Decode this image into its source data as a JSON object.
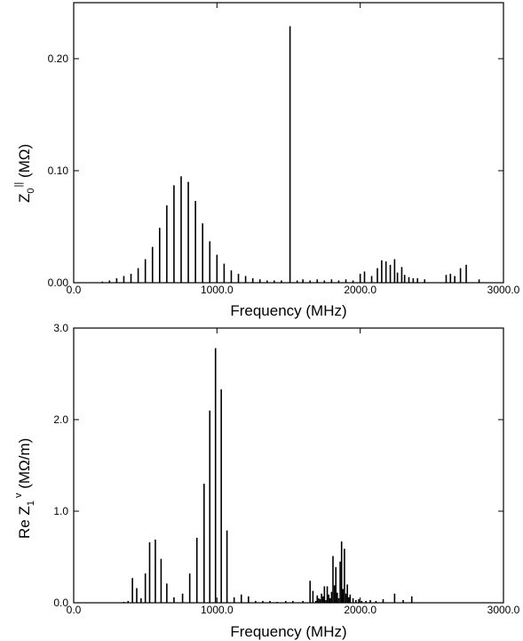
{
  "chart_data": [
    {
      "type": "bar",
      "xlabel": "Frequency (MHz)",
      "ylabel": {
        "base": "Z",
        "sub": "0",
        "sup": "||",
        "unit": " (MΩ)"
      },
      "xlim": [
        0,
        3000
      ],
      "ylim": [
        0,
        0.25
      ],
      "xticks": [
        0,
        1000,
        2000,
        3000
      ],
      "xtick_labels": [
        "0.0",
        "1000.0",
        "2000.0",
        "3000.0"
      ],
      "yticks": [
        0,
        0.1,
        0.2
      ],
      "ytick_labels": [
        "0.00",
        "0.10",
        "0.20"
      ],
      "grid": false,
      "x": [
        200,
        250,
        300,
        350,
        400,
        450,
        500,
        550,
        600,
        650,
        700,
        750,
        800,
        850,
        900,
        950,
        1000,
        1050,
        1100,
        1150,
        1200,
        1250,
        1300,
        1350,
        1400,
        1450,
        1510,
        1560,
        1600,
        1650,
        1700,
        1750,
        1800,
        1850,
        1900,
        1950,
        2000,
        2030,
        2080,
        2120,
        2150,
        2180,
        2210,
        2240,
        2260,
        2290,
        2310,
        2340,
        2370,
        2400,
        2450,
        2600,
        2630,
        2660,
        2700,
        2740,
        2830
      ],
      "values": [
        0.001,
        0.002,
        0.004,
        0.006,
        0.008,
        0.013,
        0.021,
        0.032,
        0.049,
        0.069,
        0.087,
        0.095,
        0.09,
        0.073,
        0.053,
        0.037,
        0.025,
        0.017,
        0.011,
        0.008,
        0.006,
        0.004,
        0.003,
        0.002,
        0.002,
        0.002,
        0.229,
        0.002,
        0.003,
        0.002,
        0.003,
        0.002,
        0.003,
        0.002,
        0.003,
        0.002,
        0.008,
        0.01,
        0.006,
        0.013,
        0.02,
        0.019,
        0.016,
        0.021,
        0.009,
        0.014,
        0.007,
        0.005,
        0.004,
        0.004,
        0.003,
        0.007,
        0.008,
        0.006,
        0.013,
        0.016,
        0.003
      ]
    },
    {
      "type": "bar",
      "xlabel": "Frequency (MHz)",
      "ylabel": {
        "base": "Re Z",
        "sub": "1",
        "sup": "v",
        "unit": " (MΩ/m)"
      },
      "xlim": [
        0,
        3000
      ],
      "ylim": [
        0,
        3.0
      ],
      "xticks": [
        0,
        1000,
        2000,
        3000
      ],
      "xtick_labels": [
        "0.0",
        "1000.0",
        "2000.0",
        "3000.0"
      ],
      "yticks": [
        0,
        1,
        2,
        3
      ],
      "ytick_labels": [
        "0.0",
        "1.0",
        "2.0",
        "3.0"
      ],
      "grid": false,
      "x": [
        350,
        380,
        410,
        440,
        470,
        500,
        530,
        570,
        610,
        650,
        700,
        760,
        810,
        860,
        910,
        950,
        990,
        1030,
        1070,
        1120,
        1170,
        1220,
        1270,
        1320,
        1370,
        1420,
        1480,
        1530,
        1600,
        1650,
        1670,
        1690,
        1700,
        1710,
        1720,
        1730,
        1740,
        1750,
        1760,
        1770,
        1780,
        1790,
        1800,
        1810,
        1820,
        1830,
        1840,
        1850,
        1860,
        1870,
        1880,
        1890,
        1900,
        1910,
        1920,
        1930,
        1950,
        1970,
        1990,
        2010,
        2040,
        2070,
        2110,
        2160,
        2240,
        2300,
        2360
      ],
      "values": [
        0.01,
        0.02,
        0.27,
        0.16,
        0.05,
        0.32,
        0.66,
        0.69,
        0.48,
        0.21,
        0.06,
        0.1,
        0.32,
        0.71,
        1.3,
        2.1,
        2.78,
        2.33,
        0.79,
        0.06,
        0.09,
        0.07,
        0.02,
        0.02,
        0.02,
        0.01,
        0.02,
        0.02,
        0.02,
        0.24,
        0.13,
        0.02,
        0.08,
        0.05,
        0.04,
        0.1,
        0.07,
        0.18,
        0.03,
        0.18,
        0.09,
        0.05,
        0.12,
        0.51,
        0.19,
        0.39,
        0.11,
        0.05,
        0.45,
        0.67,
        0.15,
        0.59,
        0.1,
        0.2,
        0.06,
        0.09,
        0.05,
        0.03,
        0.04,
        0.02,
        0.02,
        0.03,
        0.02,
        0.04,
        0.1,
        0.03,
        0.07
      ]
    }
  ]
}
